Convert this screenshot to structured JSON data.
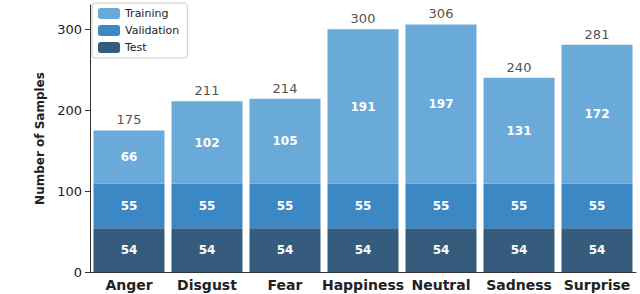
{
  "chart_data": {
    "type": "bar",
    "stacked": true,
    "data_labels": true,
    "grid": false,
    "legend": "upper left",
    "categories": [
      "Anger",
      "Disgust",
      "Fear",
      "Happiness",
      "Neutral",
      "Sadness",
      "Surprise"
    ],
    "ylabel": "Number of Samples",
    "ylim": [
      0,
      330
    ],
    "yticks": [
      0,
      100,
      200,
      300
    ],
    "series": [
      {
        "name": "Test",
        "color": "#355c7d",
        "values": [
          54,
          54,
          54,
          54,
          54,
          54,
          54
        ]
      },
      {
        "name": "Validation",
        "color": "#3b88c4",
        "values": [
          55,
          55,
          55,
          55,
          55,
          55,
          55
        ]
      },
      {
        "name": "Training",
        "color": "#6aaad9",
        "values": [
          66,
          102,
          105,
          191,
          197,
          131,
          172
        ]
      }
    ],
    "totals": [
      175,
      211,
      214,
      300,
      306,
      240,
      281
    ]
  }
}
